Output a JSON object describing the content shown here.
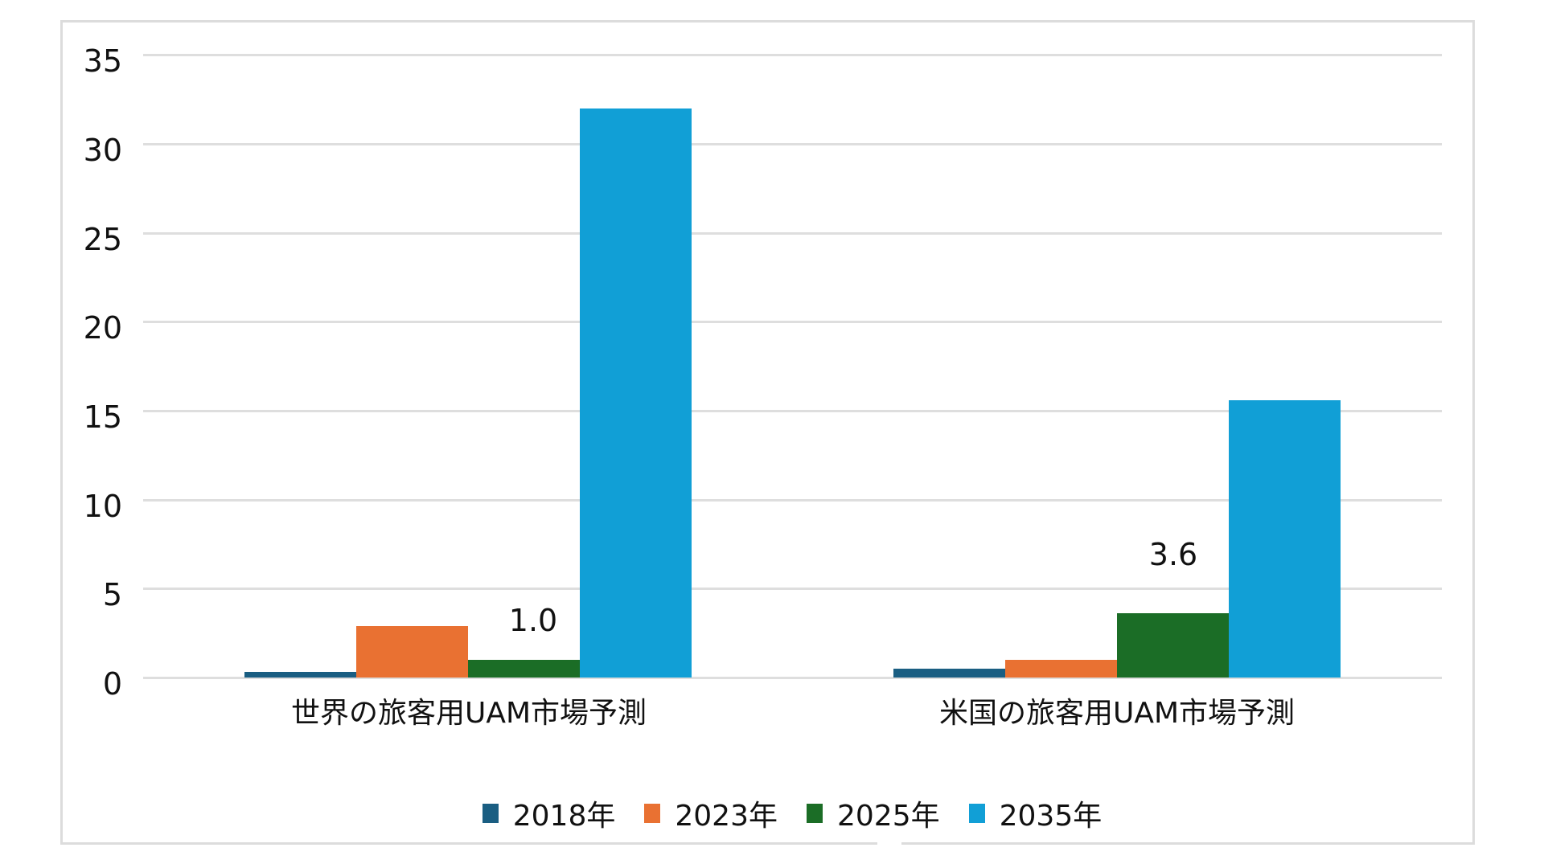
{
  "chart_data": {
    "type": "bar",
    "title": "",
    "xlabel": "",
    "ylabel": "",
    "ylim": [
      0,
      35
    ],
    "yticks": [
      0,
      5,
      10,
      15,
      20,
      25,
      30,
      35
    ],
    "grid": true,
    "legend_position": "bottom",
    "categories": [
      "世界の旅客用UAM市場予測",
      "米国の旅客用UAM市場予測"
    ],
    "series": [
      {
        "name": "2018年",
        "color": "#1a5e82",
        "values": [
          0.3,
          0.5
        ]
      },
      {
        "name": "2023年",
        "color": "#e97132",
        "values": [
          2.9,
          1.0
        ]
      },
      {
        "name": "2025年",
        "color": "#1b6d26",
        "values": [
          1.0,
          3.6
        ]
      },
      {
        "name": "2035年",
        "color": "#119fd6",
        "values": [
          32.0,
          15.6
        ]
      }
    ],
    "annotations": [
      {
        "category": "世界の旅客用UAM市場予測",
        "series": "2025年",
        "text": "1.0"
      },
      {
        "category": "米国の旅客用UAM市場予測",
        "series": "2025年",
        "text": "3.6"
      }
    ]
  },
  "axis": {
    "y_labels": [
      "0",
      "5",
      "10",
      "15",
      "20",
      "25",
      "30",
      "35"
    ]
  },
  "labels": {
    "cat0": "世界の旅客用UAM市場予測",
    "cat1": "米国の旅客用UAM市場予測",
    "ann0": "1.0",
    "ann1": "3.6"
  },
  "legend": [
    {
      "label": "2018年",
      "color": "#1a5e82"
    },
    {
      "label": "2023年",
      "color": "#e97132"
    },
    {
      "label": "2025年",
      "color": "#1b6d26"
    },
    {
      "label": "2035年",
      "color": "#119fd6"
    }
  ]
}
